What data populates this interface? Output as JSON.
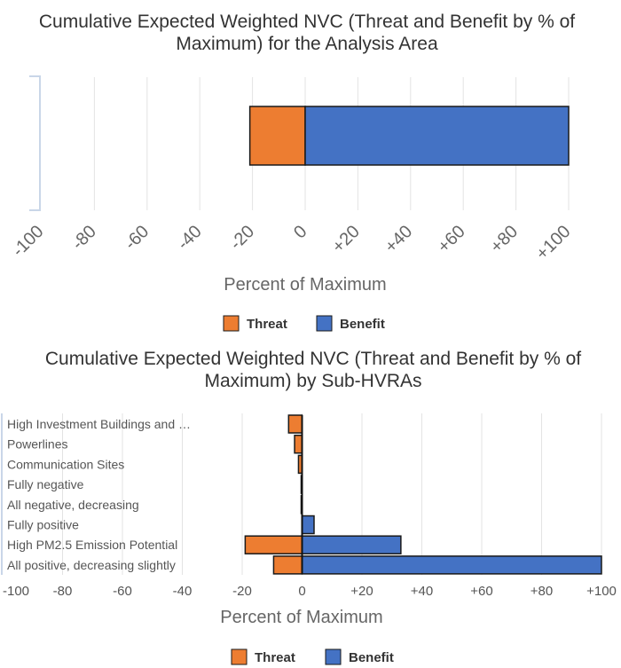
{
  "colors": {
    "threat": "#ed7d31",
    "benefit": "#4472c4",
    "outline": "#1a1a1a",
    "grid": "#e3e3e3"
  },
  "chart_data": [
    {
      "type": "bar",
      "orientation": "horizontal",
      "stacked": "diverging",
      "title_line1": "Cumulative Expected Weighted NVC (Threat and Benefit by % of",
      "title_line2": "Maximum) for the Analysis Area",
      "xlabel": "Percent of Maximum",
      "xlim": [
        -100,
        100
      ],
      "ticks": [
        {
          "value": -100,
          "label": "-100"
        },
        {
          "value": -80,
          "label": "-80"
        },
        {
          "value": -60,
          "label": "-60"
        },
        {
          "value": -40,
          "label": "-40"
        },
        {
          "value": -20,
          "label": "-20"
        },
        {
          "value": 0,
          "label": "0"
        },
        {
          "value": 20,
          "label": "+20"
        },
        {
          "value": 40,
          "label": "+40"
        },
        {
          "value": 60,
          "label": "+60"
        },
        {
          "value": 80,
          "label": "+80"
        },
        {
          "value": 100,
          "label": "+100"
        }
      ],
      "categories": [
        ""
      ],
      "series": [
        {
          "name": "Threat",
          "values": [
            -21
          ]
        },
        {
          "name": "Benefit",
          "values": [
            100
          ]
        }
      ],
      "legend": {
        "position": "bottom",
        "items": [
          "Threat",
          "Benefit"
        ]
      }
    },
    {
      "type": "bar",
      "orientation": "horizontal",
      "stacked": "diverging",
      "title_line1": "Cumulative Expected Weighted NVC (Threat and Benefit by % of",
      "title_line2": "Maximum) by Sub-HVRAs",
      "xlabel": "Percent of Maximum",
      "xlim": [
        -100,
        100
      ],
      "ticks": [
        {
          "value": -100,
          "label": "-100"
        },
        {
          "value": -80,
          "label": "-80"
        },
        {
          "value": -60,
          "label": "-60"
        },
        {
          "value": -40,
          "label": "-40"
        },
        {
          "value": -20,
          "label": "-20"
        },
        {
          "value": 0,
          "label": "0"
        },
        {
          "value": 20,
          "label": "+20"
        },
        {
          "value": 40,
          "label": "+40"
        },
        {
          "value": 60,
          "label": "+60"
        },
        {
          "value": 80,
          "label": "+80"
        },
        {
          "value": 100,
          "label": "+100"
        }
      ],
      "categories": [
        "High Investment Buildings and …",
        "Powerlines",
        "Communication Sites",
        "Fully negative",
        "All negative, decreasing",
        "Fully positive",
        "High PM2.5 Emission Potential",
        "All positive, decreasing slightly"
      ],
      "series": [
        {
          "name": "Threat",
          "values": [
            -4.5,
            -2.5,
            -1.2,
            -0.3,
            -0.3,
            0,
            -19,
            -9.5
          ]
        },
        {
          "name": "Benefit",
          "values": [
            0,
            0,
            0,
            0,
            0,
            4,
            33,
            100
          ]
        }
      ],
      "legend": {
        "position": "bottom",
        "items": [
          "Threat",
          "Benefit"
        ]
      }
    }
  ]
}
